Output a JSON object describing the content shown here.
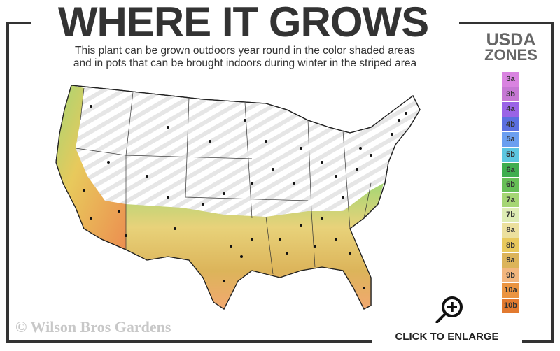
{
  "header": {
    "title": "WHERE IT GROWS",
    "subtitle_line1": "This plant can be grown outdoors year round in the color shaded areas",
    "subtitle_line2": "and in pots that can be brought indoors during winter in the striped area"
  },
  "legend": {
    "title_line1": "USDA",
    "title_line2": "ZONES",
    "zones": [
      {
        "label": "3a",
        "color": "#d983e0"
      },
      {
        "label": "3b",
        "color": "#c678d4"
      },
      {
        "label": "4a",
        "color": "#9a63e6"
      },
      {
        "label": "4b",
        "color": "#5b6fe0"
      },
      {
        "label": "5a",
        "color": "#6b9ff0"
      },
      {
        "label": "5b",
        "color": "#5cc6e0"
      },
      {
        "label": "6a",
        "color": "#3fae4f"
      },
      {
        "label": "6b",
        "color": "#67bf57"
      },
      {
        "label": "7a",
        "color": "#a5d674"
      },
      {
        "label": "7b",
        "color": "#deecb4"
      },
      {
        "label": "8a",
        "color": "#ece09e"
      },
      {
        "label": "8b",
        "color": "#e8c95c"
      },
      {
        "label": "9a",
        "color": "#dcb45a"
      },
      {
        "label": "9b",
        "color": "#f2b67e"
      },
      {
        "label": "10a",
        "color": "#eb9440"
      },
      {
        "label": "10b",
        "color": "#e27a30"
      }
    ]
  },
  "footer": {
    "copyright": "© Wilson Bros Gardens",
    "enlarge_label": "CLICK TO ENLARGE",
    "enlarge_icon": "zoom-in-icon"
  }
}
